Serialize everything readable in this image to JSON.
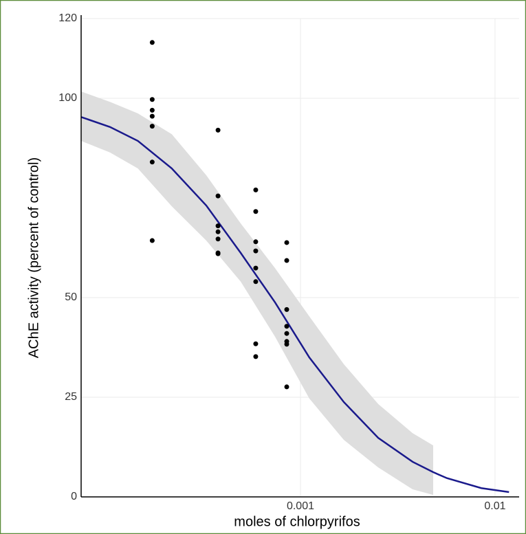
{
  "chart_data": {
    "type": "scatter",
    "xlabel": "moles of chlorpyrifos",
    "ylabel": "AChE activity (percent of control)",
    "xlog": true,
    "grid": true,
    "xlim": [
      7.46e-05,
      0.0133
    ],
    "ylim": [
      0,
      120
    ],
    "xticks": [
      0.001,
      0.01
    ],
    "yticks": [
      0,
      25,
      50,
      100,
      120
    ],
    "points": {
      "color": "#000000",
      "x": [
        0.000173,
        0.000173,
        0.000173,
        0.000173,
        0.000173,
        0.000173,
        0.000173,
        0.000377,
        0.000377,
        0.000377,
        0.000377,
        0.000377,
        0.000377,
        0.000377,
        0.000589,
        0.000589,
        0.000589,
        0.000589,
        0.000589,
        0.000589,
        0.000589,
        0.000589,
        0.00085,
        0.00085,
        0.00085,
        0.00085,
        0.00085,
        0.00085,
        0.00085,
        0.00085
      ],
      "y": [
        114,
        99.7,
        97,
        95.5,
        93,
        84,
        64.3,
        92,
        75.5,
        68,
        66.5,
        64.7,
        61.2,
        61,
        77,
        71.6,
        64,
        61.7,
        57.4,
        54,
        38.4,
        35.2,
        63.8,
        59.3,
        47,
        42.8,
        41,
        39,
        38.3,
        27.6
      ]
    },
    "fit": {
      "color": "#1a1a8c",
      "band_color": "#dedede",
      "x": [
        7.46e-05,
        0.000105,
        0.000146,
        0.000218,
        0.000328,
        0.000493,
        0.00074,
        0.00111,
        0.00167,
        0.00251,
        0.00377,
        0.00481,
        0.00566,
        0.0085,
        0.0118
      ],
      "values": [
        95.3,
        92.8,
        89.3,
        82.4,
        73.1,
        61.2,
        48.8,
        35.0,
        23.8,
        14.8,
        8.8,
        6.2,
        4.7,
        2.2,
        1.2
      ],
      "upper": [
        101.7,
        99.1,
        96.2,
        91.0,
        80.7,
        68.6,
        57.4,
        45.3,
        33.3,
        23.3,
        16.0,
        12.9,
        null,
        null,
        null
      ],
      "lower": [
        89.3,
        86.4,
        82.4,
        72.9,
        64.3,
        54.0,
        40.2,
        24.7,
        14.3,
        7.4,
        1.9,
        0.5,
        null,
        null,
        null
      ]
    }
  }
}
